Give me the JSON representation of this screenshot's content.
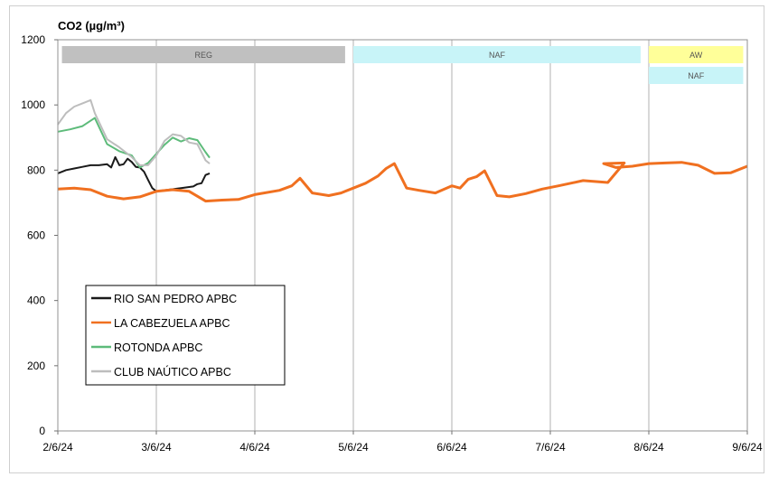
{
  "chart_data": {
    "type": "line",
    "title": "CO2 (µg/m³)",
    "xlabel": "",
    "ylabel": "",
    "ylim": [
      0,
      1200
    ],
    "yticks": [
      0,
      200,
      400,
      600,
      800,
      1000,
      1200
    ],
    "xlim": [
      "2024-06-02",
      "2024-06-09"
    ],
    "xticks": [
      "2/6/24",
      "3/6/24",
      "4/6/24",
      "5/6/24",
      "6/6/24",
      "7/6/24",
      "8/6/24",
      "9/6/24"
    ],
    "grid": "vertical",
    "legend_position": "bottom-left",
    "bands": [
      {
        "label": "REG",
        "start": "2024-06-02 01:00",
        "end": "2024-06-04 22:00",
        "row": 1,
        "color": "#c0c0c0"
      },
      {
        "label": "NAF",
        "start": "2024-06-05 00:00",
        "end": "2024-06-07 22:00",
        "row": 1,
        "color": "#c8f4f8"
      },
      {
        "label": "AW",
        "start": "2024-06-08 00:00",
        "end": "2024-06-08 23:00",
        "row": 1,
        "color": "#ffff99"
      },
      {
        "label": "NAF",
        "start": "2024-06-08 00:00",
        "end": "2024-06-08 23:00",
        "row": 2,
        "color": "#c8f4f8"
      }
    ],
    "series": [
      {
        "name": "RIO SAN PEDRO APBC",
        "color": "#1a1a1a",
        "x": [
          "2024-06-02 00:00",
          "2024-06-02 02:00",
          "2024-06-02 04:00",
          "2024-06-02 06:00",
          "2024-06-02 08:00",
          "2024-06-02 10:00",
          "2024-06-02 12:00",
          "2024-06-02 13:00",
          "2024-06-02 14:00",
          "2024-06-02 15:00",
          "2024-06-02 16:00",
          "2024-06-02 17:00",
          "2024-06-02 18:00",
          "2024-06-02 19:00",
          "2024-06-02 20:00",
          "2024-06-02 21:00",
          "2024-06-02 22:00",
          "2024-06-02 23:00",
          "2024-06-03 00:00",
          "2024-06-03 03:00",
          "2024-06-03 06:00",
          "2024-06-03 09:00",
          "2024-06-03 10:00",
          "2024-06-03 11:00",
          "2024-06-03 12:00",
          "2024-06-03 13:00"
        ],
        "values": [
          790,
          800,
          805,
          810,
          815,
          815,
          818,
          808,
          840,
          815,
          818,
          835,
          825,
          810,
          808,
          795,
          770,
          745,
          735,
          740,
          745,
          750,
          757,
          760,
          785,
          790
        ]
      },
      {
        "name": "LA CABEZUELA APBC",
        "color": "#f07020",
        "x": [
          "2024-06-02 00:00",
          "2024-06-02 04:00",
          "2024-06-02 08:00",
          "2024-06-02 12:00",
          "2024-06-02 16:00",
          "2024-06-02 20:00",
          "2024-06-03 00:00",
          "2024-06-03 04:00",
          "2024-06-03 08:00",
          "2024-06-03 12:00",
          "2024-06-03 16:00",
          "2024-06-03 20:00",
          "2024-06-04 00:00",
          "2024-06-04 06:00",
          "2024-06-04 09:00",
          "2024-06-04 11:00",
          "2024-06-04 14:00",
          "2024-06-04 18:00",
          "2024-06-04 21:00",
          "2024-06-05 00:00",
          "2024-06-05 03:00",
          "2024-06-05 06:00",
          "2024-06-05 08:00",
          "2024-06-05 10:00",
          "2024-06-05 13:00",
          "2024-06-05 16:00",
          "2024-06-05 20:00",
          "2024-06-06 00:00",
          "2024-06-06 02:00",
          "2024-06-06 04:00",
          "2024-06-06 06:00",
          "2024-06-06 08:00",
          "2024-06-06 11:00",
          "2024-06-06 14:00",
          "2024-06-06 18:00",
          "2024-06-06 22:00",
          "2024-06-07 02:00",
          "2024-06-07 08:00",
          "2024-06-07 14:00",
          "2024-06-07 18:00",
          "2024-06-07 13:00",
          "2024-06-07 16:00",
          "2024-06-07 20:00",
          "2024-06-08 00:00",
          "2024-06-08 04:00",
          "2024-06-08 08:00",
          "2024-06-08 12:00",
          "2024-06-08 16:00",
          "2024-06-08 20:00",
          "2024-06-09 00:00"
        ],
        "values": [
          742,
          745,
          740,
          720,
          712,
          718,
          735,
          740,
          735,
          705,
          708,
          710,
          725,
          738,
          752,
          775,
          730,
          722,
          730,
          745,
          760,
          782,
          805,
          820,
          745,
          738,
          730,
          752,
          745,
          772,
          780,
          798,
          722,
          718,
          728,
          742,
          752,
          768,
          762,
          822,
          820,
          808,
          812,
          820,
          822,
          824,
          815,
          790,
          792,
          812
        ]
      },
      {
        "name": "ROTONDA APBC",
        "color": "#5dbb7a",
        "x": [
          "2024-06-02 00:00",
          "2024-06-02 03:00",
          "2024-06-02 06:00",
          "2024-06-02 09:00",
          "2024-06-02 12:00",
          "2024-06-02 15:00",
          "2024-06-02 18:00",
          "2024-06-02 20:00",
          "2024-06-02 22:00",
          "2024-06-03 00:00",
          "2024-06-03 02:00",
          "2024-06-03 04:00",
          "2024-06-03 06:00",
          "2024-06-03 08:00",
          "2024-06-03 10:00",
          "2024-06-03 12:00",
          "2024-06-03 13:00"
        ],
        "values": [
          918,
          925,
          935,
          960,
          880,
          858,
          845,
          808,
          822,
          850,
          878,
          900,
          888,
          898,
          892,
          855,
          838
        ]
      },
      {
        "name": "CLUB NAÚTICO  APBC",
        "color": "#bdbdbd",
        "x": [
          "2024-06-02 00:00",
          "2024-06-02 02:00",
          "2024-06-02 04:00",
          "2024-06-02 06:00",
          "2024-06-02 08:00",
          "2024-06-02 09:00",
          "2024-06-02 12:00",
          "2024-06-02 15:00",
          "2024-06-02 18:00",
          "2024-06-02 20:00",
          "2024-06-02 22:00",
          "2024-06-03 00:00",
          "2024-06-03 02:00",
          "2024-06-03 04:00",
          "2024-06-03 06:00",
          "2024-06-03 08:00",
          "2024-06-03 10:00",
          "2024-06-03 12:00",
          "2024-06-03 13:00"
        ],
        "values": [
          940,
          975,
          995,
          1005,
          1015,
          975,
          895,
          870,
          840,
          815,
          815,
          845,
          890,
          910,
          905,
          885,
          880,
          830,
          820
        ]
      }
    ]
  }
}
